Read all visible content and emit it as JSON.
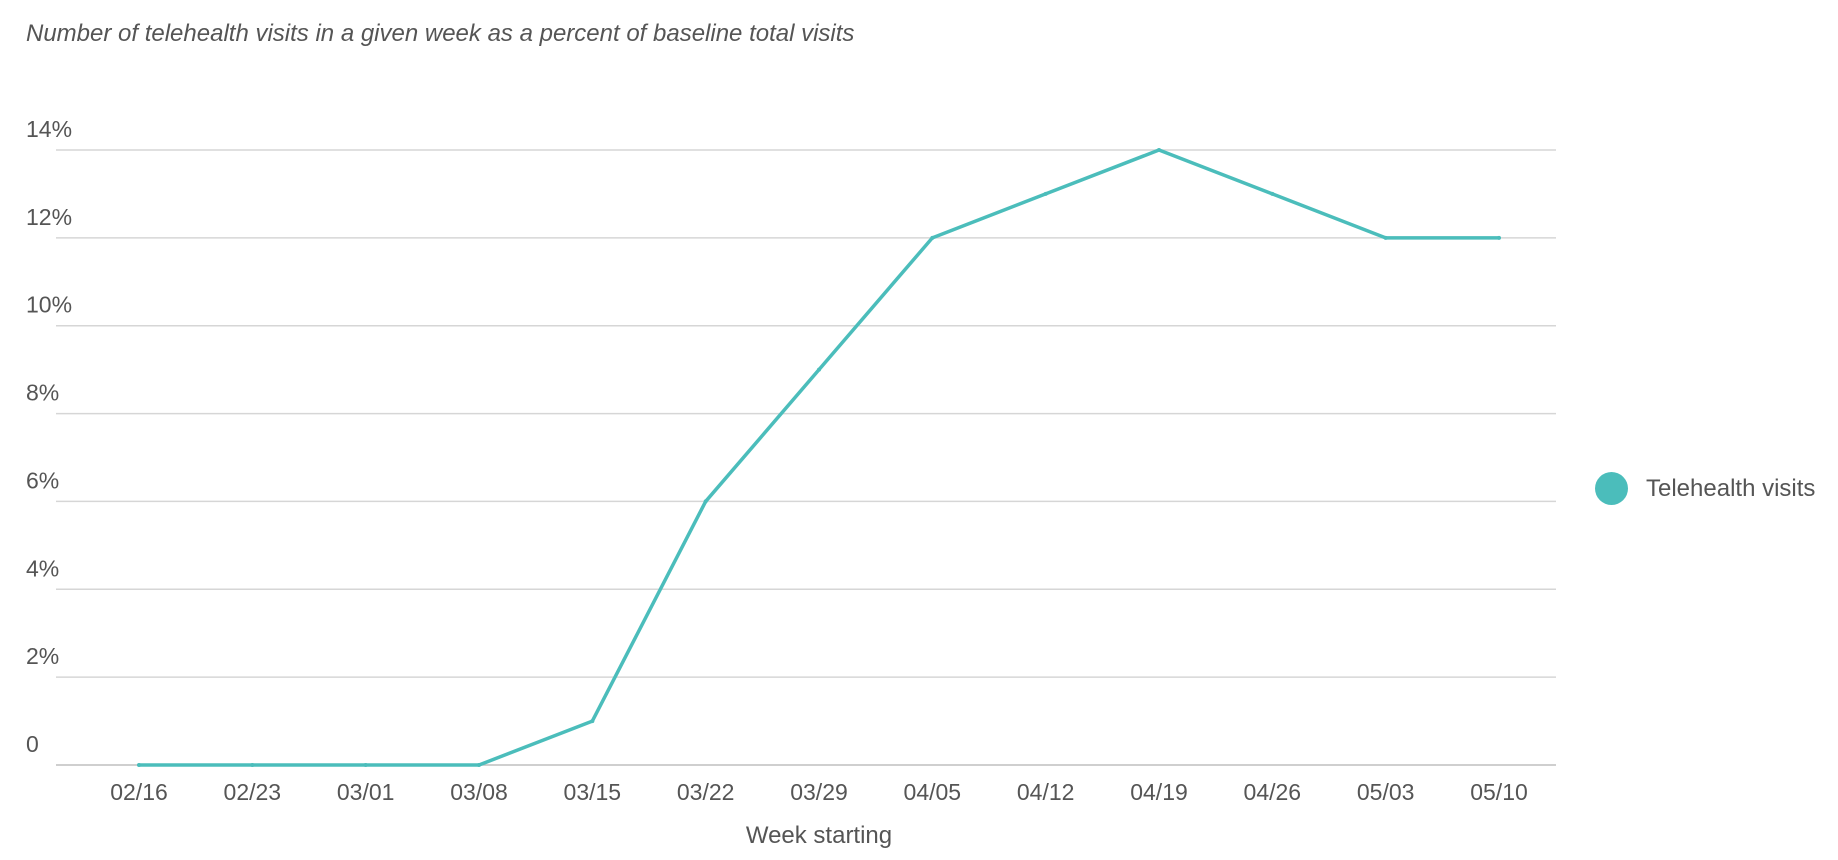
{
  "chart_data": {
    "type": "line",
    "title": "Number of telehealth visits in a given week as a percent of baseline total visits",
    "xlabel": "Week starting",
    "ylabel": "",
    "categories": [
      "02/16",
      "02/23",
      "03/01",
      "03/08",
      "03/15",
      "03/22",
      "03/29",
      "04/05",
      "04/12",
      "04/19",
      "04/26",
      "05/03",
      "05/10"
    ],
    "series": [
      {
        "name": "Telehealth visits",
        "color": "#4bbdbb",
        "values": [
          0,
          0,
          0,
          0,
          1,
          6,
          9,
          12,
          13,
          14,
          13,
          12,
          12
        ]
      }
    ],
    "ylim": [
      0,
      14
    ],
    "yticks": [
      {
        "value": 0,
        "label": "0"
      },
      {
        "value": 2,
        "label": "2%"
      },
      {
        "value": 4,
        "label": "4%"
      },
      {
        "value": 6,
        "label": "6%"
      },
      {
        "value": 8,
        "label": "8%"
      },
      {
        "value": 10,
        "label": "10%"
      },
      {
        "value": 12,
        "label": "12%"
      },
      {
        "value": 14,
        "label": "14%"
      }
    ],
    "grid": true,
    "legend_position": "right"
  }
}
